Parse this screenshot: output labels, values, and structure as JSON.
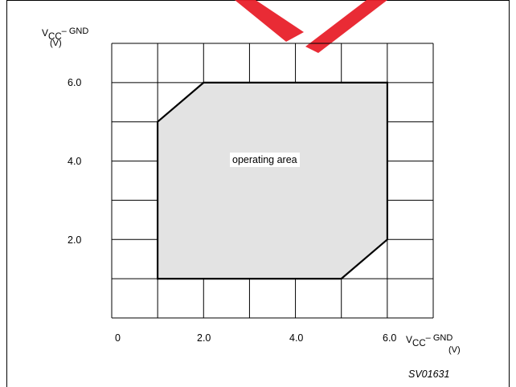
{
  "diagram": {
    "y_axis": {
      "v": "V",
      "cc": "CC",
      "gnd": "– GND",
      "unit": "(V)"
    },
    "x_axis": {
      "v": "V",
      "cc": "CC",
      "gnd": "– GND",
      "unit": "(V)"
    },
    "y_ticks": [
      "6.0",
      "4.0",
      "2.0"
    ],
    "x_ticks": [
      "0",
      "2.0",
      "4.0",
      "6.0"
    ],
    "area_label": "operating area",
    "figure_code": "SV01631",
    "colors": {
      "area_fill": "#e3e3e3",
      "grid": "#000000",
      "watermark": "#e8202a"
    }
  },
  "chart_data": {
    "type": "area",
    "x": [
      1.0,
      2.0,
      6.0,
      6.0,
      5.0,
      1.0
    ],
    "y": [
      5.0,
      6.0,
      6.0,
      2.0,
      1.0,
      1.0
    ],
    "xlim": [
      0,
      7
    ],
    "ylim": [
      0,
      7
    ],
    "grid": true,
    "x_tick_labels": [
      "0",
      "2.0",
      "4.0",
      "6.0"
    ],
    "y_tick_labels": [
      "2.0",
      "4.0",
      "6.0"
    ],
    "annotation": "operating area"
  }
}
